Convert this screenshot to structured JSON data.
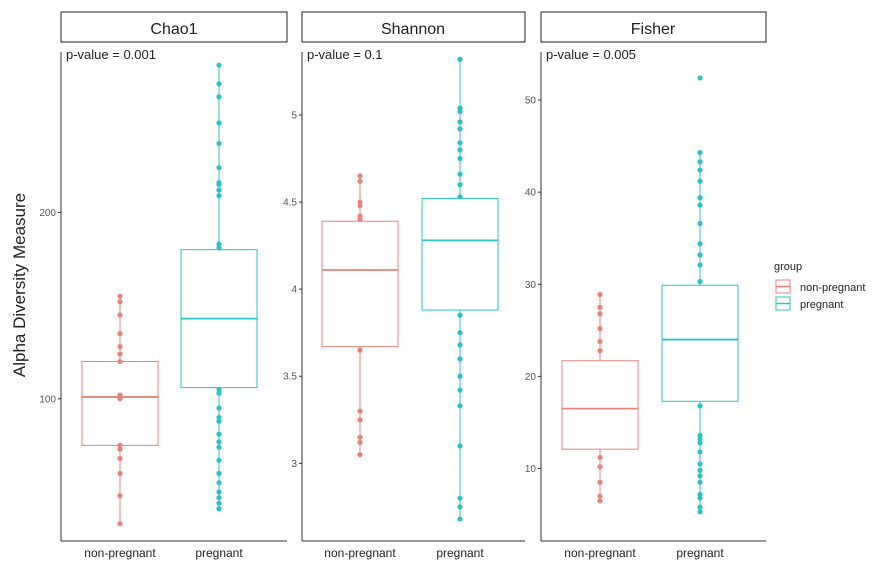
{
  "figure": {
    "ylabel": "Alpha Diversity Measure"
  },
  "legend": {
    "title": "group",
    "items": [
      {
        "label": "non-pregnant",
        "color": "#E8837C"
      },
      {
        "label": "pregnant",
        "color": "#2BC3C8"
      }
    ]
  },
  "chart_data": [
    {
      "type": "box",
      "title": "Chao1",
      "annotation": "p-value = 0.001",
      "categories": [
        "non-pregnant",
        "pregnant"
      ],
      "ylim": [
        28,
        285
      ],
      "yticks": [
        100,
        200
      ],
      "boxes": [
        {
          "group": "non-pregnant",
          "q1": 75,
          "median": 101,
          "q3": 120,
          "whisker_low": 33,
          "whisker_high": 155,
          "points": [
            33,
            48,
            60,
            68,
            73,
            75,
            100,
            102,
            120,
            124,
            128,
            135,
            145,
            152,
            155
          ]
        },
        {
          "group": "pregnant",
          "q1": 106,
          "median": 143,
          "q3": 180,
          "whisker_low": 41,
          "whisker_high": 279,
          "points": [
            41,
            44,
            47,
            50,
            55,
            60,
            67,
            74,
            77,
            81,
            88,
            90,
            95,
            103,
            105,
            181,
            183,
            209,
            212,
            215,
            216,
            224,
            237,
            248,
            262,
            269,
            279
          ]
        }
      ]
    },
    {
      "type": "box",
      "title": "Shannon",
      "annotation": "p-value = 0.1",
      "categories": [
        "non-pregnant",
        "pregnant"
      ],
      "ylim": [
        2.6,
        5.35
      ],
      "yticks": [
        3.0,
        3.5,
        4.0,
        4.5,
        5.0
      ],
      "boxes": [
        {
          "group": "non-pregnant",
          "q1": 3.67,
          "median": 4.11,
          "q3": 4.39,
          "whisker_low": 3.05,
          "whisker_high": 4.65,
          "points": [
            3.05,
            3.12,
            3.15,
            3.25,
            3.3,
            3.65,
            4.4,
            4.42,
            4.48,
            4.5,
            4.62,
            4.65
          ]
        },
        {
          "group": "pregnant",
          "q1": 3.88,
          "median": 4.28,
          "q3": 4.52,
          "whisker_low": 2.68,
          "whisker_high": 5.32,
          "points": [
            2.68,
            2.75,
            2.8,
            3.1,
            3.33,
            3.42,
            3.5,
            3.6,
            3.68,
            3.75,
            3.85,
            4.53,
            4.6,
            4.66,
            4.75,
            4.8,
            4.84,
            4.92,
            4.96,
            5.02,
            5.04,
            5.32
          ]
        }
      ]
    },
    {
      "type": "box",
      "title": "Fisher",
      "annotation": "p-value = 0.005",
      "categories": [
        "non-pregnant",
        "pregnant"
      ],
      "ylim": [
        3,
        55
      ],
      "yticks": [
        10,
        20,
        30,
        40,
        50
      ],
      "boxes": [
        {
          "group": "non-pregnant",
          "q1": 12.1,
          "median": 16.5,
          "q3": 21.7,
          "whisker_low": 6.5,
          "whisker_high": 28.9,
          "points": [
            6.5,
            7,
            8.5,
            10.2,
            11.2,
            22.8,
            23.8,
            25.2,
            26.8,
            27.5,
            28.9
          ]
        },
        {
          "group": "pregnant",
          "q1": 17.3,
          "median": 24.0,
          "q3": 29.9,
          "whisker_low": 5.3,
          "whisker_high": 44.3,
          "points": [
            5.3,
            5.8,
            6.8,
            7.2,
            8.5,
            9.2,
            9.8,
            10.5,
            11.8,
            12.8,
            13.2,
            13.6,
            16.8,
            30.3,
            32.1,
            33.2,
            34.4,
            36.6,
            38.6,
            39.4,
            41.2,
            42.4,
            43.3,
            44.3,
            52.4
          ]
        }
      ]
    }
  ]
}
